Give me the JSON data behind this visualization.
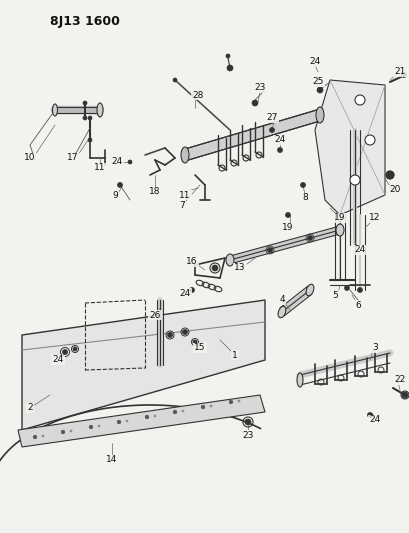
{
  "title": "8J13 1600",
  "bg_color": "#f2f2ee",
  "line_color": "#333333",
  "text_color": "#111111",
  "figsize": [
    4.09,
    5.33
  ],
  "dpi": 100
}
